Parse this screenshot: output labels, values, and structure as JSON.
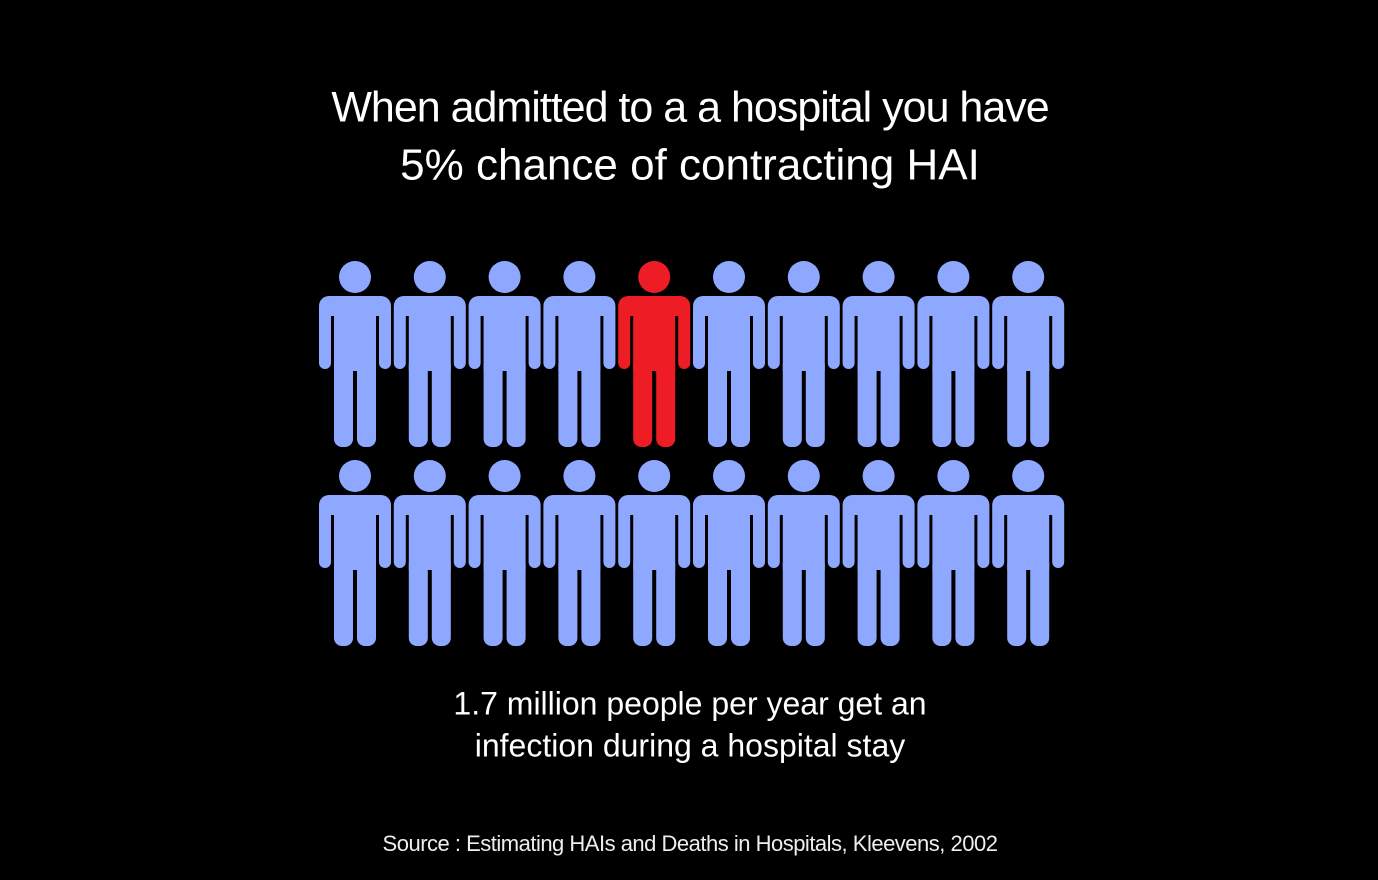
{
  "header": {
    "line1": "When admitted to a a hospital you have",
    "line2": "5% chance of contracting HAI"
  },
  "body": {
    "line1": "1.7 million people per year get an",
    "line2": "infection during a hospital stay"
  },
  "source": "Source : Estimating HAIs and Deaths in Hospitals, Kleevens, 2002"
}
